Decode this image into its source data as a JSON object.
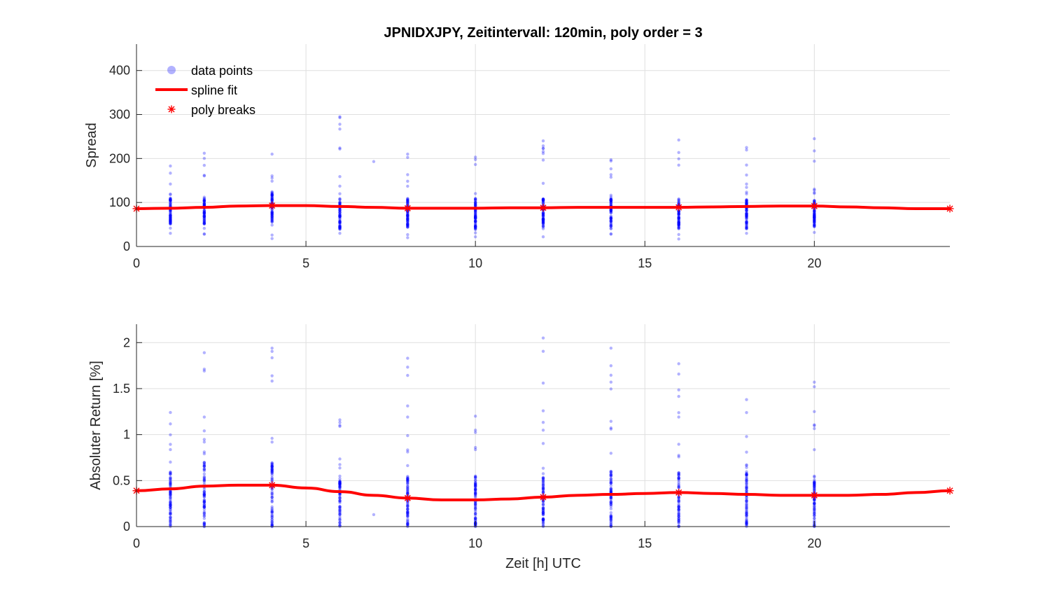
{
  "chart_data": {
    "title": "JPNIDXJPY, Zeitintervall: 120min, poly order = 3",
    "type": "scatter",
    "legend": {
      "placement": "top-left",
      "entries": [
        {
          "label": "data points",
          "symbol": "circle",
          "color": "#0000ff"
        },
        {
          "label": "spline fit",
          "symbol": "line",
          "color": "#ff0000"
        },
        {
          "label": "poly breaks",
          "symbol": "star",
          "color": "#ff0000"
        }
      ]
    },
    "colors": {
      "points": "#0000ff",
      "fit": "#ff0000",
      "breaks": "#ff0000",
      "grid": "#dfdfdf"
    },
    "grid": true,
    "subplots": [
      {
        "ylabel": "Spread",
        "xlabel": "",
        "xlim": [
          0,
          24
        ],
        "ylim": [
          0,
          460
        ],
        "xticks": [
          "0",
          "5",
          "10",
          "15",
          "20"
        ],
        "yticks": [
          "0",
          "100",
          "200",
          "300",
          "400"
        ],
        "points": {
          "x": [
            1,
            2,
            4,
            6,
            7,
            8,
            10,
            12,
            14,
            16,
            18,
            20
          ],
          "min": [
            30,
            28,
            18,
            30,
            193,
            20,
            22,
            22,
            28,
            17,
            30,
            32
          ],
          "max": [
            183,
            212,
            210,
            295,
            193,
            210,
            203,
            240,
            197,
            242,
            225,
            245
          ],
          "dense_min": [
            50,
            50,
            55,
            40,
            193,
            40,
            40,
            40,
            40,
            40,
            40,
            45
          ],
          "dense_max": [
            110,
            110,
            125,
            110,
            193,
            110,
            110,
            110,
            110,
            110,
            110,
            105
          ]
        },
        "fit": {
          "x": [
            0,
            1,
            2,
            3,
            4,
            5,
            6,
            7,
            8,
            9,
            10,
            11,
            12,
            13,
            14,
            15,
            16,
            17,
            18,
            19,
            20,
            21,
            22,
            23,
            24
          ],
          "y": [
            86,
            87,
            89,
            92,
            93,
            93,
            91,
            89,
            87,
            87,
            87,
            88,
            88,
            89,
            89,
            89,
            89,
            90,
            91,
            92,
            92,
            90,
            88,
            86,
            86
          ]
        },
        "breaks": {
          "x": [
            0,
            4,
            8,
            12,
            16,
            20,
            24
          ],
          "y": [
            86,
            93,
            87,
            88,
            89,
            92,
            86
          ]
        }
      },
      {
        "ylabel": "Absoluter Return [%]",
        "xlabel": "Zeit [h] UTC",
        "xlim": [
          0,
          24
        ],
        "ylim": [
          0,
          2.2
        ],
        "xticks": [
          "0",
          "5",
          "10",
          "15",
          "20"
        ],
        "yticks": [
          "0",
          "0.5",
          "1",
          "1.5",
          "2"
        ],
        "points": {
          "x": [
            1,
            2,
            4,
            6,
            7,
            8,
            10,
            12,
            14,
            16,
            18,
            20
          ],
          "min": [
            0,
            0,
            0,
            0,
            0.13,
            0,
            0,
            0,
            0,
            0,
            0,
            0
          ],
          "max": [
            1.24,
            1.89,
            1.94,
            1.16,
            0.13,
            1.83,
            1.2,
            2.05,
            1.94,
            1.77,
            1.38,
            1.57
          ],
          "dense_min": [
            0,
            0,
            0,
            0,
            0.13,
            0,
            0,
            0,
            0,
            0,
            0,
            0
          ],
          "dense_max": [
            0.6,
            0.7,
            0.7,
            0.55,
            0.13,
            0.55,
            0.55,
            0.55,
            0.6,
            0.6,
            0.6,
            0.55
          ]
        },
        "fit": {
          "x": [
            0,
            1,
            2,
            3,
            4,
            5,
            6,
            7,
            8,
            9,
            10,
            11,
            12,
            13,
            14,
            15,
            16,
            17,
            18,
            19,
            20,
            21,
            22,
            23,
            24
          ],
          "y": [
            0.39,
            0.41,
            0.44,
            0.45,
            0.45,
            0.42,
            0.38,
            0.34,
            0.31,
            0.29,
            0.29,
            0.3,
            0.32,
            0.34,
            0.35,
            0.36,
            0.37,
            0.36,
            0.35,
            0.34,
            0.34,
            0.34,
            0.35,
            0.37,
            0.39
          ]
        },
        "breaks": {
          "x": [
            0,
            4,
            8,
            12,
            16,
            20,
            24
          ],
          "y": [
            0.39,
            0.45,
            0.31,
            0.32,
            0.37,
            0.34,
            0.39
          ]
        }
      }
    ]
  }
}
